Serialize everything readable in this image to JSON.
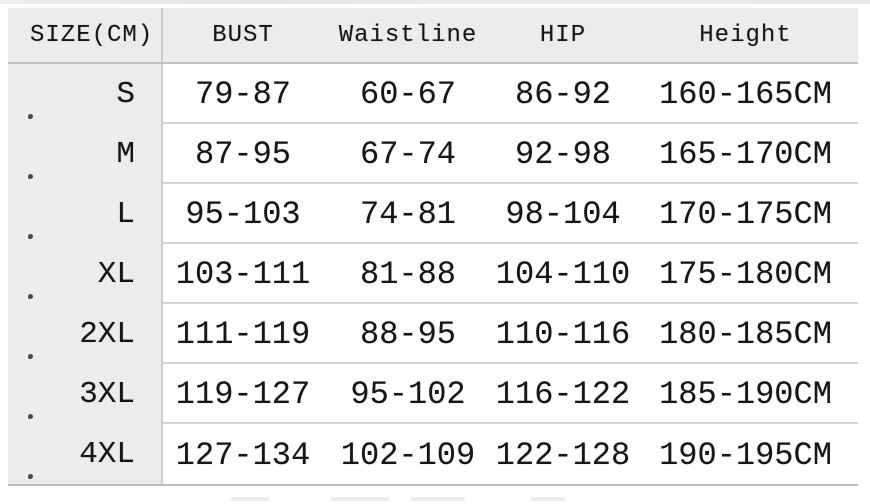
{
  "colors": {
    "header_background": "#ececec",
    "size_column_background": "#ececec",
    "row_separator": "#d4d4d4",
    "table_border": "#bdbdbd",
    "text": "#161616"
  },
  "chart_data": {
    "type": "table",
    "title": "",
    "columns": [
      "SIZE(CM)",
      "BUST",
      "Waistline",
      "HIP",
      "Height"
    ],
    "rows": [
      [
        "S",
        "79-87",
        "60-67",
        "86-92",
        "160-165CM"
      ],
      [
        "M",
        "87-95",
        "67-74",
        "92-98",
        "165-170CM"
      ],
      [
        "L",
        "95-103",
        "74-81",
        "98-104",
        "170-175CM"
      ],
      [
        "XL",
        "103-111",
        "81-88",
        "104-110",
        "175-180CM"
      ],
      [
        "2XL",
        "111-119",
        "88-95",
        "110-116",
        "180-185CM"
      ],
      [
        "3XL",
        "119-127",
        "95-102",
        "116-122",
        "185-190CM"
      ],
      [
        "4XL",
        "127-134",
        "102-109",
        "122-128",
        "190-195CM"
      ]
    ]
  }
}
